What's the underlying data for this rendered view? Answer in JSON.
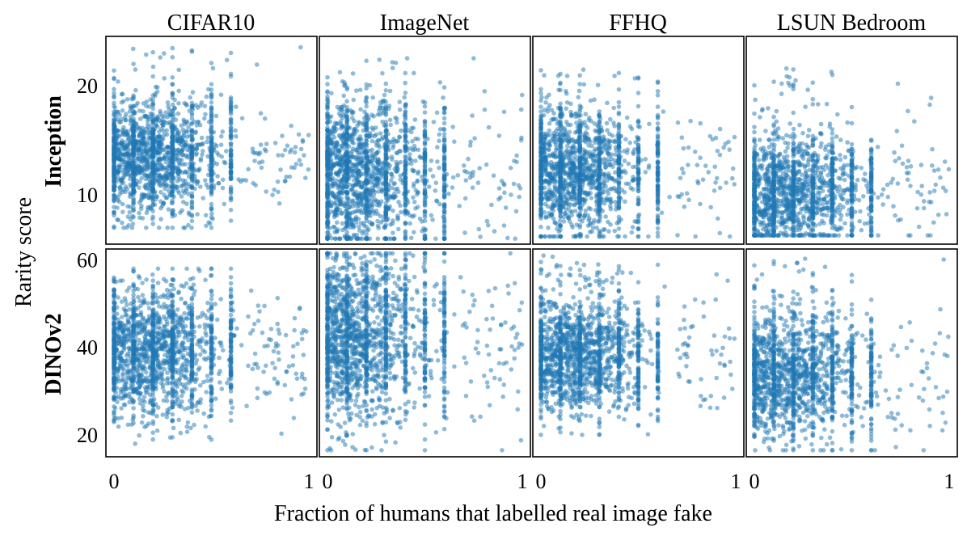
{
  "chart_data": {
    "type": "scatter",
    "columns": [
      "CIFAR10",
      "ImageNet",
      "FFHQ",
      "LSUN Bedroom"
    ],
    "rows": [
      "Inception",
      "DINOv2"
    ],
    "xlabel": "Fraction of humans that labelled real image fake",
    "ylabel": "Rarity score",
    "xlim": [
      0,
      1
    ],
    "xticks": [
      0,
      1
    ],
    "x_tick_labels": [
      "0",
      "1"
    ],
    "marker_color": "#1f77b4",
    "panels": [
      {
        "row": "Inception",
        "ylim": [
          5.5,
          24.5
        ],
        "yticks": [
          10,
          20
        ],
        "y_tick_labels": [
          "10",
          "20"
        ],
        "distributions": [
          {
            "dataset": "CIFAR10",
            "x_mode": 0.2,
            "x_spread": 0.16,
            "y_center": 13.5,
            "y_spread": 2.6,
            "y_min": 7.0,
            "y_max": 23.5,
            "n": 1800
          },
          {
            "dataset": "ImageNet",
            "x_mode": 0.12,
            "x_spread": 0.2,
            "y_center": 12.0,
            "y_spread": 3.4,
            "y_min": 6.0,
            "y_max": 22.5,
            "n": 1800
          },
          {
            "dataset": "FFHQ",
            "x_mode": 0.18,
            "x_spread": 0.15,
            "y_center": 12.0,
            "y_spread": 2.7,
            "y_min": 6.2,
            "y_max": 21.5,
            "n": 1700
          },
          {
            "dataset": "LSUN Bedroom",
            "x_mode": 0.18,
            "x_spread": 0.18,
            "y_center": 10.2,
            "y_spread": 2.4,
            "y_min": 6.3,
            "y_max": 21.8,
            "n": 1700
          }
        ]
      },
      {
        "row": "DINOv2",
        "ylim": [
          15,
          62.5
        ],
        "yticks": [
          20,
          40,
          60
        ],
        "y_tick_labels": [
          "20",
          "40",
          "60"
        ],
        "distributions": [
          {
            "dataset": "CIFAR10",
            "x_mode": 0.2,
            "x_spread": 0.16,
            "y_center": 38.5,
            "y_spread": 7.5,
            "y_min": 18.0,
            "y_max": 58.0,
            "n": 1800
          },
          {
            "dataset": "ImageNet",
            "x_mode": 0.12,
            "x_spread": 0.2,
            "y_center": 42.0,
            "y_spread": 9.5,
            "y_min": 16.5,
            "y_max": 61.5,
            "n": 1800
          },
          {
            "dataset": "FFHQ",
            "x_mode": 0.18,
            "x_spread": 0.15,
            "y_center": 38.0,
            "y_spread": 6.5,
            "y_min": 20.0,
            "y_max": 61.0,
            "n": 1700
          },
          {
            "dataset": "LSUN Bedroom",
            "x_mode": 0.18,
            "x_spread": 0.18,
            "y_center": 33.5,
            "y_spread": 7.0,
            "y_min": 16.5,
            "y_max": 60.5,
            "n": 1700
          }
        ]
      }
    ]
  }
}
